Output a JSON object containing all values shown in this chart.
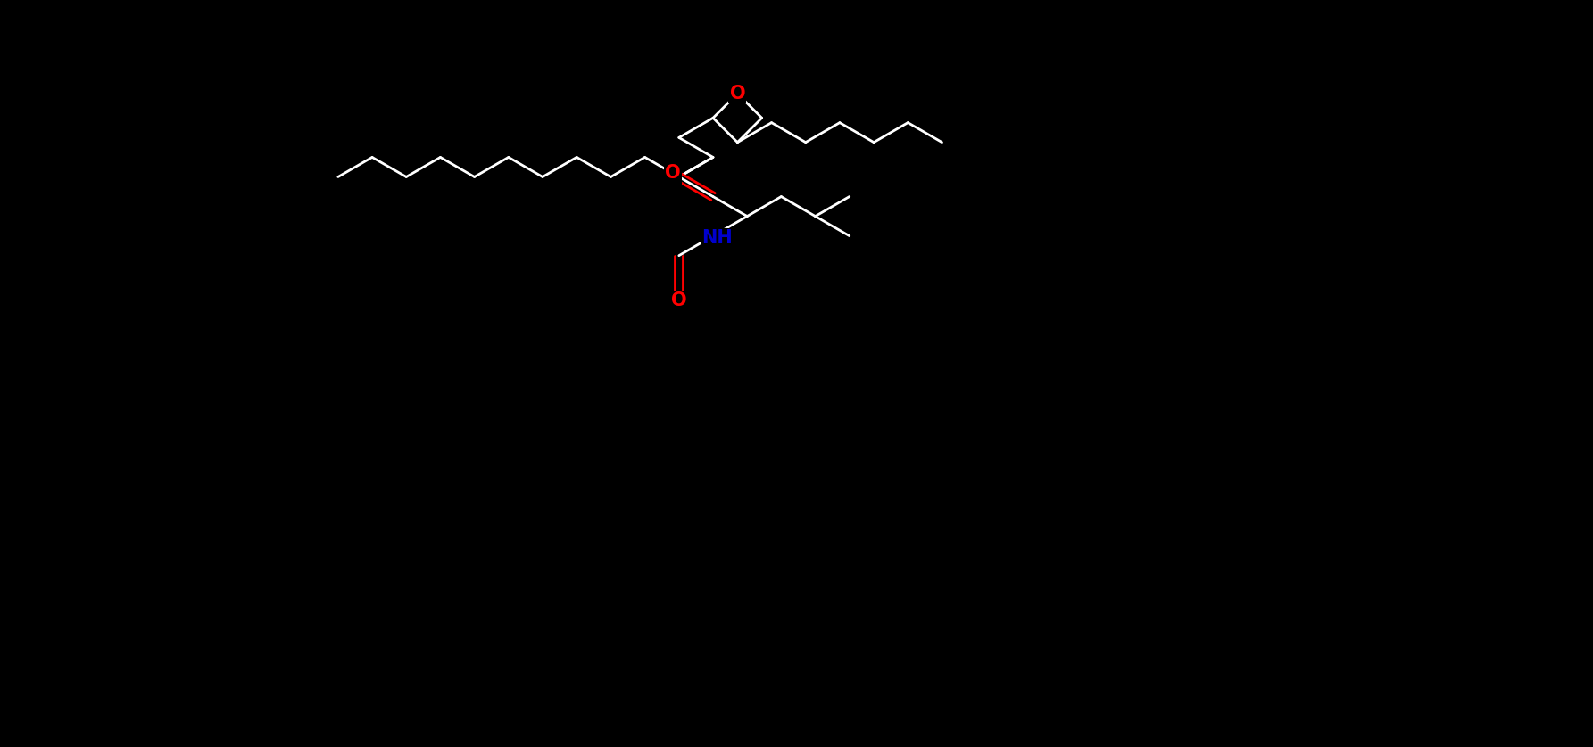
{
  "background_color": "#000000",
  "bond_color": "#ffffff",
  "O_color": "#ff0000",
  "N_color": "#0000cd",
  "figsize": [
    17.85,
    8.38
  ],
  "dpi": 100,
  "xlim": [
    -15,
    22
  ],
  "ylim": [
    -9,
    10
  ],
  "lw": 2.0,
  "fs": 15
}
